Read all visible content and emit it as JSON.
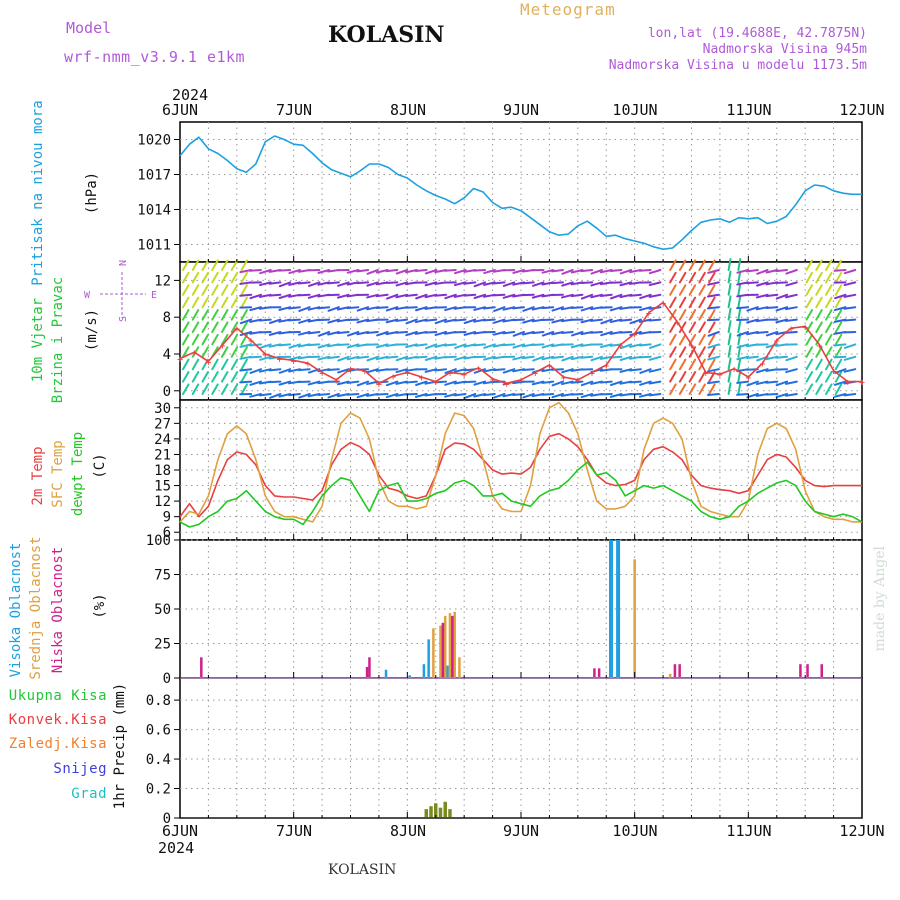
{
  "header": {
    "model_label": "Model",
    "model_name": "wrf-nmm_v3.9.1 e1km",
    "station": "KOLASIN",
    "title": "Meteogram",
    "lonlat": "lon,lat (19.4688E, 42.7875N)",
    "altitude": "Nadmorska Visina 945m",
    "model_altitude": "Nadmorska Visina u modelu 1173.5m"
  },
  "footer": {
    "station": "KOLASIN",
    "credit": "made by Angel"
  },
  "time_axis": {
    "year": "2024",
    "ticks": [
      "6JUN",
      "7JUN",
      "8JUN",
      "9JUN",
      "10JUN",
      "11JUN",
      "12JUN"
    ]
  },
  "colors": {
    "pressure": "#1ea0e0",
    "wind_label": "#22c83a",
    "wind_dir": "#b05ad8",
    "temp2m": "#e84040",
    "sfc": "#e0a040",
    "dewpt": "#22c822",
    "high_cloud": "#1ea0e0",
    "mid_cloud": "#e0a040",
    "low_cloud": "#d0208a",
    "total_precip": "#22c83a",
    "conv": "#e84040",
    "frozen": "#f08030",
    "snow": "#4040e0",
    "hail": "#20c0c0"
  },
  "panels": {
    "pressure": {
      "label": "Pritisak na nivou mora",
      "unit": "(hPa)"
    },
    "wind": {
      "label1": "10m Vjetar",
      "label2": "Brzina i Pravac",
      "unit": "(m/s)",
      "compass_n": "N",
      "compass_w": "W",
      "compass_e": "E",
      "compass_s": "S"
    },
    "temp": {
      "label1": "2m Temp",
      "label2": "SFC Temp",
      "label3": "dewpt Temp",
      "unit": "(C)"
    },
    "cloud": {
      "label1": "Visoka Oblacnost",
      "label2": "Srednja Oblacnost",
      "label3": "Niska Oblacnost",
      "unit": "(%)"
    },
    "precip": {
      "legend": [
        "Ukupna Kisa",
        "Konvek.Kisa",
        "Zaledj.Kisa",
        "Snijeg",
        "Grad"
      ],
      "unit": "1hr Precip (mm)"
    }
  },
  "chart_data": [
    {
      "type": "line",
      "panel": "pressure",
      "y_ticks": [
        "1011",
        "1014",
        "1017",
        "1020"
      ],
      "ylim": [
        1009.5,
        1021.5
      ],
      "x_unit": "hours since 6JUN 00UTC",
      "series": [
        {
          "name": "Pritisak na nivou mora",
          "x": [
            0,
            2,
            4,
            6,
            8,
            10,
            12,
            14,
            16,
            18,
            20,
            22,
            24,
            26,
            28,
            30,
            32,
            34,
            36,
            38,
            40,
            42,
            44,
            46,
            48,
            50,
            52,
            54,
            56,
            58,
            60,
            62,
            64,
            66,
            68,
            70,
            72,
            74,
            76,
            78,
            80,
            82,
            84,
            86,
            88,
            90,
            92,
            94,
            96,
            98,
            100,
            102,
            104,
            106,
            108,
            110,
            112,
            114,
            116,
            118,
            120,
            122,
            124,
            126,
            128,
            130,
            132,
            134,
            136,
            138,
            140,
            142,
            144
          ],
          "y": [
            1018.6,
            1019.6,
            1020.2,
            1019.2,
            1018.8,
            1018.2,
            1017.5,
            1017.2,
            1017.9,
            1019.8,
            1020.3,
            1020.0,
            1019.6,
            1019.5,
            1018.8,
            1018.0,
            1017.4,
            1017.1,
            1016.8,
            1017.3,
            1017.9,
            1017.9,
            1017.6,
            1017.0,
            1016.7,
            1016.1,
            1015.6,
            1015.2,
            1014.9,
            1014.5,
            1015.0,
            1015.8,
            1015.5,
            1014.6,
            1014.1,
            1014.2,
            1013.9,
            1013.3,
            1012.7,
            1012.1,
            1011.8,
            1011.9,
            1012.6,
            1013.0,
            1012.4,
            1011.7,
            1011.8,
            1011.5,
            1011.3,
            1011.1,
            1010.8,
            1010.6,
            1010.7,
            1011.4,
            1012.2,
            1012.9,
            1013.1,
            1013.2,
            1012.9,
            1013.3,
            1013.2,
            1013.3,
            1012.8,
            1013.0,
            1013.4,
            1014.4,
            1015.6,
            1016.1,
            1016.0,
            1015.6,
            1015.4,
            1015.3,
            1015.3
          ]
        }
      ]
    },
    {
      "type": "line",
      "panel": "wind",
      "y_ticks": [
        "0",
        "4",
        "8",
        "12"
      ],
      "ylim": [
        -1,
        14
      ],
      "series": [
        {
          "name": "10m Vjetar",
          "x": [
            0,
            3,
            6,
            9,
            12,
            15,
            18,
            21,
            24,
            27,
            30,
            33,
            36,
            39,
            42,
            45,
            48,
            51,
            54,
            57,
            60,
            63,
            66,
            69,
            72,
            75,
            78,
            81,
            84,
            87,
            90,
            93,
            96,
            99,
            102,
            105,
            108,
            111,
            114,
            117,
            120,
            123,
            126,
            129,
            132,
            135,
            138,
            141,
            144
          ],
          "y": [
            3.5,
            4.2,
            3.2,
            5.0,
            6.8,
            5.5,
            4.0,
            3.5,
            3.3,
            3.0,
            2.0,
            1.2,
            2.4,
            2.2,
            0.8,
            1.6,
            2.0,
            1.5,
            1.0,
            2.0,
            1.8,
            2.5,
            1.3,
            0.8,
            1.2,
            2.0,
            2.8,
            1.5,
            1.2,
            2.0,
            2.8,
            5.0,
            6.2,
            8.5,
            9.6,
            7.5,
            5.0,
            2.0,
            1.8,
            2.4,
            1.5,
            3.0,
            5.5,
            6.8,
            7.0,
            5.0,
            2.2,
            1.0,
            1.0
          ]
        }
      ]
    },
    {
      "type": "line",
      "panel": "temp",
      "y_ticks": [
        "6",
        "9",
        "12",
        "15",
        "18",
        "21",
        "24",
        "27",
        "30"
      ],
      "ylim": [
        4.5,
        31.5
      ],
      "series": [
        {
          "name": "2m Temp",
          "x": [
            0,
            2,
            4,
            6,
            8,
            10,
            12,
            14,
            16,
            18,
            20,
            22,
            24,
            26,
            28,
            30,
            32,
            34,
            36,
            38,
            40,
            42,
            44,
            46,
            48,
            50,
            52,
            54,
            56,
            58,
            60,
            62,
            64,
            66,
            68,
            70,
            72,
            74,
            76,
            78,
            80,
            82,
            84,
            86,
            88,
            90,
            92,
            94,
            96,
            98,
            100,
            102,
            104,
            106,
            108,
            110,
            112,
            114,
            116,
            118,
            120,
            122,
            124,
            126,
            128,
            130,
            132,
            134,
            136,
            138,
            140,
            142,
            144
          ],
          "y": [
            9,
            11.5,
            9,
            11,
            16,
            20,
            21.5,
            21,
            19,
            15,
            13,
            12.8,
            12.8,
            12.5,
            12.2,
            14,
            19,
            22,
            23.3,
            22.5,
            21,
            17,
            14.5,
            14,
            13,
            12.5,
            13,
            17,
            22,
            23.2,
            23,
            22,
            20,
            18,
            17.2,
            17.4,
            17.2,
            18.5,
            22,
            24.5,
            25,
            24,
            22.5,
            20,
            17,
            15.5,
            15,
            15.2,
            16,
            20,
            22,
            22.5,
            21.5,
            20,
            17,
            15,
            14.5,
            14.2,
            14,
            13.5,
            14,
            17,
            20,
            21,
            20.5,
            18.5,
            16,
            15,
            14.8,
            15,
            15,
            15,
            15
          ]
        },
        {
          "name": "SFC Temp",
          "x": [
            0,
            2,
            4,
            6,
            8,
            10,
            12,
            14,
            16,
            18,
            20,
            22,
            24,
            26,
            28,
            30,
            32,
            34,
            36,
            38,
            40,
            42,
            44,
            46,
            48,
            50,
            52,
            54,
            56,
            58,
            60,
            62,
            64,
            66,
            68,
            70,
            72,
            74,
            76,
            78,
            80,
            82,
            84,
            86,
            88,
            90,
            92,
            94,
            96,
            98,
            100,
            102,
            104,
            106,
            108,
            110,
            112,
            114,
            116,
            118,
            120,
            122,
            124,
            126,
            128,
            130,
            132,
            134,
            136,
            138,
            140,
            142,
            144
          ],
          "y": [
            8,
            10,
            9.5,
            13,
            20,
            25,
            26.5,
            25,
            20,
            13,
            10,
            9,
            9,
            8.5,
            8,
            11,
            20,
            27,
            29,
            28,
            24,
            16,
            12,
            11,
            11,
            10.5,
            11,
            17,
            25,
            29,
            28.5,
            26,
            20,
            13,
            10.5,
            10,
            10,
            15,
            25,
            30,
            31,
            29,
            25,
            18,
            12,
            10.5,
            10.5,
            11,
            13,
            22,
            27,
            28,
            27,
            24,
            16,
            11,
            10,
            9.5,
            9,
            9,
            12,
            21,
            26,
            27,
            26,
            22,
            14,
            10,
            9,
            8.5,
            8.5,
            8,
            8
          ]
        },
        {
          "name": "dewpt Temp",
          "x": [
            0,
            2,
            4,
            6,
            8,
            10,
            12,
            14,
            16,
            18,
            20,
            22,
            24,
            26,
            28,
            30,
            32,
            34,
            36,
            38,
            40,
            42,
            44,
            46,
            48,
            50,
            52,
            54,
            56,
            58,
            60,
            62,
            64,
            66,
            68,
            70,
            72,
            74,
            76,
            78,
            80,
            82,
            84,
            86,
            88,
            90,
            92,
            94,
            96,
            98,
            100,
            102,
            104,
            106,
            108,
            110,
            112,
            114,
            116,
            118,
            120,
            122,
            124,
            126,
            128,
            130,
            132,
            134,
            136,
            138,
            140,
            142,
            144
          ],
          "y": [
            8,
            7,
            7.5,
            9,
            10,
            12,
            12.5,
            14,
            12,
            10,
            9,
            8.5,
            8.5,
            7.5,
            10,
            13,
            15,
            16.5,
            16,
            13,
            10,
            14,
            15,
            15.5,
            12,
            12,
            12.5,
            13.5,
            14,
            15.5,
            16,
            15,
            13,
            13,
            13.5,
            12,
            11.5,
            11,
            13,
            14,
            14.5,
            16,
            18,
            19.5,
            17,
            17.5,
            16,
            13,
            14,
            15,
            14.5,
            15,
            14,
            13,
            12,
            10,
            9,
            8.5,
            9,
            11,
            12,
            13.5,
            14.5,
            15.5,
            16,
            15,
            12,
            10,
            9.5,
            9,
            9.5,
            9,
            8
          ]
        }
      ]
    },
    {
      "type": "bar",
      "panel": "cloud",
      "y_ticks": [
        "0",
        "25",
        "50",
        "75",
        "100"
      ],
      "ylim": [
        0,
        100
      ],
      "series": [
        {
          "name": "Visoka Oblacnost",
          "x": [
            43.5,
            48.5,
            51.5,
            52.5,
            56.5,
            91.0,
            92.5
          ],
          "y": [
            6,
            2,
            10,
            28,
            9,
            100,
            100
          ]
        },
        {
          "name": "Srednja Oblacnost",
          "x": [
            53.5,
            55.0,
            56.0,
            57.0,
            58.0,
            59.0,
            96.0,
            103.5
          ],
          "y": [
            36,
            38,
            45,
            47,
            48,
            15,
            86,
            3
          ]
        },
        {
          "name": "Niska Oblacnost",
          "x": [
            4.5,
            39.5,
            40.0,
            55.5,
            57.5,
            87.5,
            88.5,
            104.5,
            105.5,
            131.0,
            132.5,
            135.5
          ],
          "y": [
            15,
            8,
            15,
            40,
            45,
            7,
            7,
            10,
            10,
            10,
            10,
            10
          ]
        }
      ]
    },
    {
      "type": "bar",
      "panel": "precip",
      "y_ticks": [
        "0",
        "0.2",
        "0.4",
        "0.6",
        "0.8"
      ],
      "ylim": [
        0,
        0.95
      ],
      "series": [
        {
          "name": "Ukupna Kisa",
          "x": [
            52.0,
            53.0,
            54.0,
            55.0,
            56.0,
            57.0
          ],
          "y": [
            0.06,
            0.08,
            0.1,
            0.07,
            0.11,
            0.06
          ]
        }
      ]
    }
  ]
}
